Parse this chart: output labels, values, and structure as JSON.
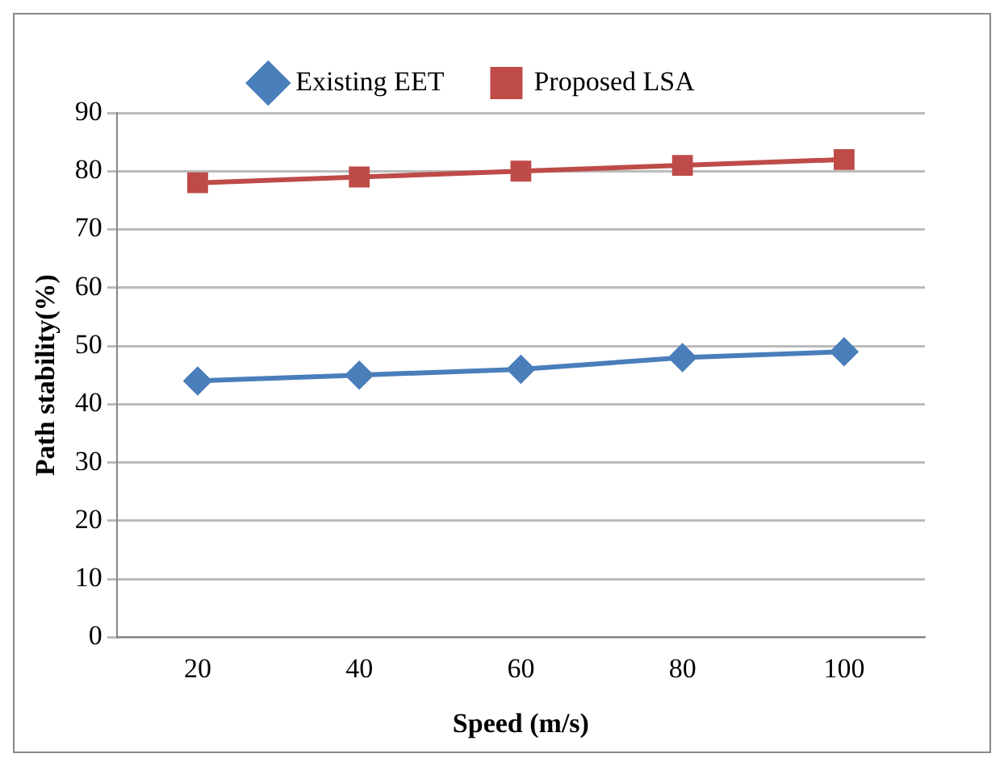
{
  "chart_data": {
    "type": "line",
    "xlabel": "Speed (m/s)",
    "ylabel": "Path stability(%)",
    "categories": [
      "20",
      "40",
      "60",
      "80",
      "100"
    ],
    "series": [
      {
        "name": "Existing EET",
        "color": "#4a7ebb",
        "marker": "diamond",
        "values": [
          44,
          45,
          46,
          48,
          49
        ]
      },
      {
        "name": "Proposed LSA",
        "color": "#be4b48",
        "marker": "square",
        "values": [
          78,
          79,
          80,
          81,
          82
        ]
      }
    ],
    "ylim": [
      0,
      90
    ],
    "yticks": [
      0,
      10,
      20,
      30,
      40,
      50,
      60,
      70,
      80,
      90
    ],
    "grid": "y",
    "legend": "top"
  }
}
